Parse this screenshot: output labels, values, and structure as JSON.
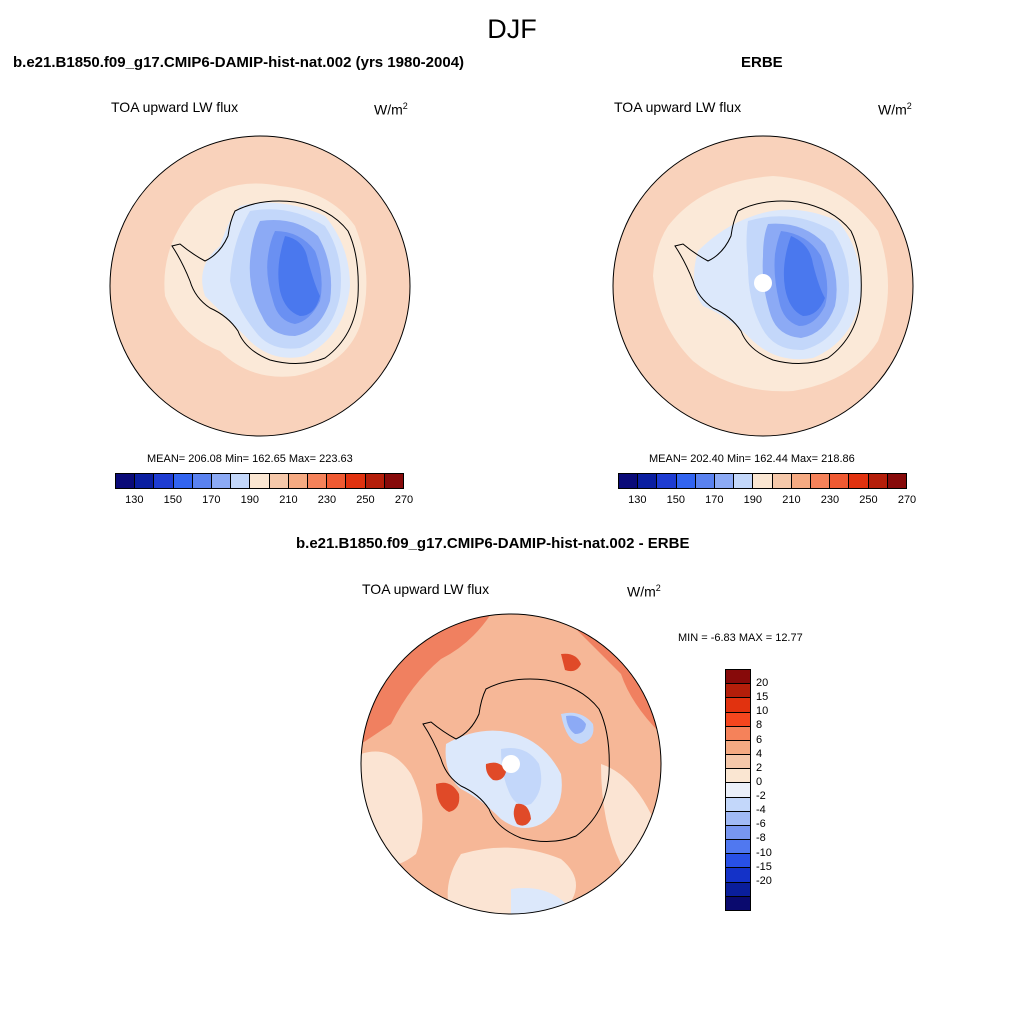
{
  "season": "DJF",
  "panels": {
    "model": {
      "title": "b.e21.B1850.f09_g17.CMIP6-DAMIP-hist-nat.002 (yrs 1980-2004)",
      "variable": "TOA upward LW flux",
      "units_base": "W/m",
      "units_exp": "2",
      "stats": "MEAN= 206.08  Min= 162.65  Max= 223.63"
    },
    "obs": {
      "title": "ERBE",
      "variable": "TOA upward LW flux",
      "units_base": "W/m",
      "units_exp": "2",
      "stats": "MEAN= 202.40  Min= 162.44  Max= 218.86"
    },
    "diff": {
      "title": "b.e21.B1850.f09_g17.CMIP6-DAMIP-hist-nat.002 - ERBE",
      "variable": "TOA upward LW flux",
      "units_base": "W/m",
      "units_exp": "2",
      "stats": "MIN =  -6.83 MAX =  12.77"
    }
  },
  "colorbars": {
    "abs": {
      "colors": [
        "#0a0a78",
        "#0a1ea0",
        "#1e3cd2",
        "#3264f0",
        "#5a82f0",
        "#8caaf5",
        "#c3d7fa",
        "#fae6d2",
        "#f5c8aa",
        "#f5aa82",
        "#f5825a",
        "#f05a32",
        "#e1320f",
        "#b41e0a",
        "#870a0a"
      ],
      "tick_labels": [
        "130",
        "150",
        "170",
        "190",
        "210",
        "230",
        "250",
        "270"
      ]
    },
    "diff": {
      "colors": [
        "#870a0a",
        "#b41e0a",
        "#e1320f",
        "#f5461e",
        "#f5825a",
        "#f5aa82",
        "#f5c8aa",
        "#fae6d2",
        "#ebf0fa",
        "#c3d7fa",
        "#a0b9f5",
        "#7896f0",
        "#5078f0",
        "#2850e6",
        "#1432c8",
        "#0a1e9b",
        "#0a0a6e"
      ],
      "tick_labels": [
        "20",
        "15",
        "10",
        "8",
        "6",
        "4",
        "2",
        "0",
        "-2",
        "-4",
        "-6",
        "-8",
        "-10",
        "-15",
        "-20"
      ]
    }
  },
  "map_colors": {
    "ocean_light": "#f9d2bb",
    "ocean_mid": "#f5c2a4",
    "cream": "#fbe9d8",
    "pale_blue": "#dce8fb",
    "light_blue": "#c3d7fa",
    "mid_blue": "#8caaf5",
    "blue": "#6a90f2",
    "deep_blue": "#4a78ee",
    "diff_base": "#f6b797",
    "diff_strong": "#f08060",
    "diff_red": "#e04a28",
    "diff_cream": "#fbe4d3"
  }
}
